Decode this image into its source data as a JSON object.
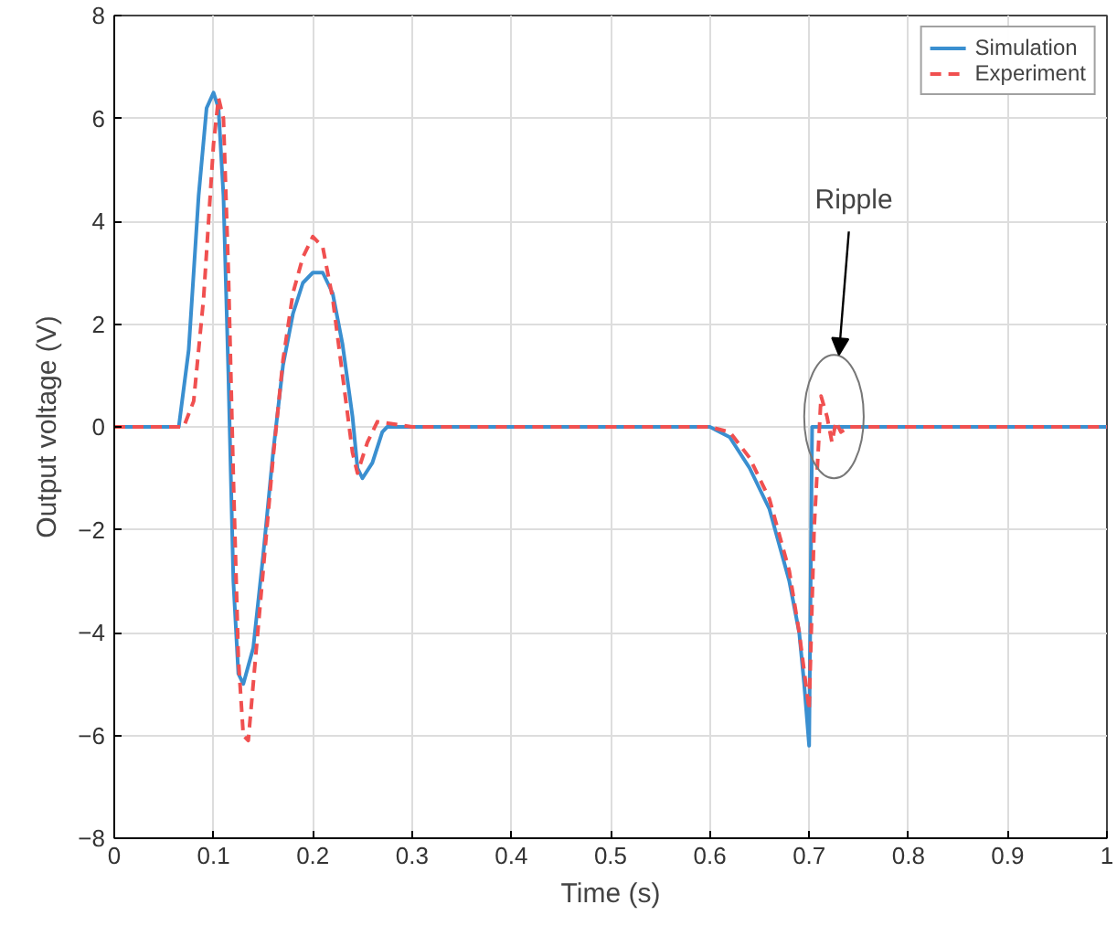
{
  "chart_data": {
    "type": "line",
    "xlabel": "Time (s)",
    "ylabel": "Output voltage (V)",
    "xlim": [
      0,
      1
    ],
    "ylim": [
      -8,
      8
    ],
    "xticks": [
      0,
      0.1,
      0.2,
      0.3,
      0.4,
      0.5,
      0.6,
      0.7,
      0.8,
      0.9,
      1
    ],
    "yticks": [
      -8,
      -6,
      -4,
      -2,
      0,
      2,
      4,
      6,
      8
    ],
    "grid": true,
    "legend": "top right",
    "annotations": [
      "Ripple"
    ],
    "series": [
      {
        "name": "Simulation",
        "color": "#3a8fd0",
        "line_style": "solid",
        "x": [
          0,
          0.065,
          0.075,
          0.085,
          0.093,
          0.1,
          0.105,
          0.11,
          0.115,
          0.12,
          0.125,
          0.13,
          0.14,
          0.15,
          0.16,
          0.17,
          0.18,
          0.19,
          0.2,
          0.21,
          0.22,
          0.23,
          0.24,
          0.245,
          0.25,
          0.26,
          0.27,
          0.275,
          0.3,
          0.6,
          0.62,
          0.64,
          0.66,
          0.68,
          0.69,
          0.695,
          0.7,
          0.703,
          0.71,
          1
        ],
        "values": [
          0,
          0,
          1.5,
          4.5,
          6.2,
          6.5,
          6.2,
          4.5,
          1,
          -3,
          -4.8,
          -5,
          -4.3,
          -2.5,
          -0.5,
          1.2,
          2.2,
          2.8,
          3,
          3,
          2.6,
          1.6,
          0.2,
          -0.8,
          -1,
          -0.7,
          -0.1,
          0,
          0,
          0,
          -0.2,
          -0.8,
          -1.6,
          -3,
          -4,
          -5,
          -6.2,
          0,
          0,
          0
        ]
      },
      {
        "name": "Experiment",
        "color": "#f05050",
        "line_style": "dashed",
        "x": [
          0,
          0.07,
          0.08,
          0.09,
          0.1,
          0.105,
          0.11,
          0.115,
          0.12,
          0.125,
          0.13,
          0.135,
          0.14,
          0.15,
          0.16,
          0.17,
          0.18,
          0.19,
          0.2,
          0.21,
          0.22,
          0.23,
          0.24,
          0.245,
          0.255,
          0.265,
          0.3,
          0.6,
          0.62,
          0.64,
          0.66,
          0.68,
          0.69,
          0.7,
          0.705,
          0.712,
          0.718,
          0.723,
          0.727,
          0.732,
          0.74,
          1
        ],
        "values": [
          0,
          0,
          0.5,
          2.5,
          5.5,
          6.4,
          6,
          3,
          -1,
          -4.5,
          -6,
          -6.1,
          -5,
          -2.8,
          -0.6,
          1.3,
          2.6,
          3.3,
          3.7,
          3.5,
          2.5,
          1,
          -0.5,
          -0.9,
          -0.3,
          0.1,
          0,
          0,
          -0.1,
          -0.6,
          -1.4,
          -2.8,
          -4,
          -5.5,
          -2,
          0.6,
          0.2,
          -0.3,
          0.1,
          -0.1,
          0,
          0
        ]
      }
    ]
  }
}
